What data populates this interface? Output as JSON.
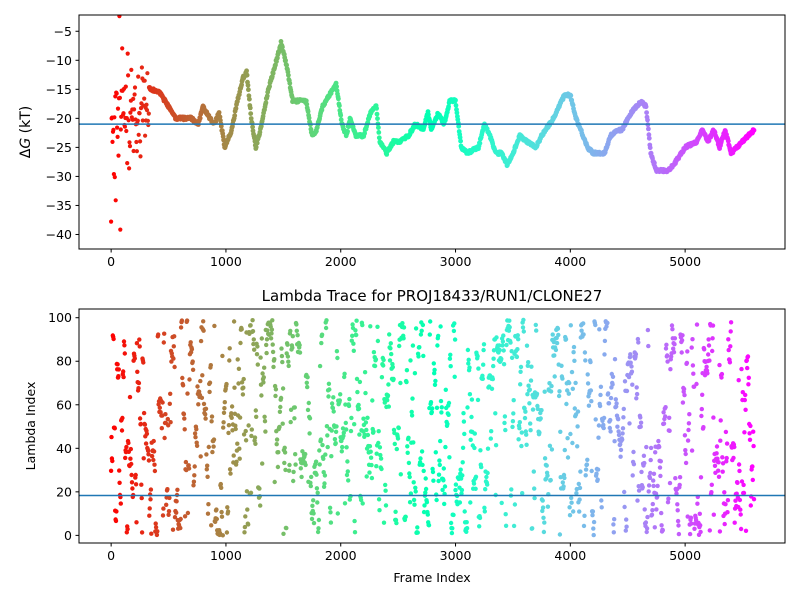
{
  "chart_data": [
    {
      "type": "scatter",
      "title": "",
      "xlabel": "",
      "ylabel_prefix": "Δ",
      "ylabel_var": "G",
      "ylabel_suffix": " (kT)",
      "xlim": [
        -280,
        5870
      ],
      "ylim": [
        -42.5,
        -2.2
      ],
      "xticks": [
        0,
        1000,
        2000,
        3000,
        4000,
        5000
      ],
      "xtick_labels": [
        "0",
        "1000",
        "2000",
        "3000",
        "4000",
        "5000"
      ],
      "yticks": [
        -5,
        -10,
        -15,
        -20,
        -25,
        -30,
        -35,
        -40
      ],
      "ytick_labels": [
        "−5",
        "−10",
        "−15",
        "−20",
        "−25",
        "−30",
        "−35",
        "−40"
      ],
      "hline": -21.0,
      "hline_color": "#1f77b4",
      "colormap": "rainbow",
      "x_max": 5600,
      "trace": [
        [
          0,
          -20
        ],
        [
          60,
          -20
        ],
        [
          120,
          -18
        ],
        [
          200,
          -16
        ],
        [
          280,
          -14
        ],
        [
          350,
          -15
        ],
        [
          420,
          -15.5
        ],
        [
          500,
          -18
        ],
        [
          560,
          -20
        ],
        [
          620,
          -20
        ],
        [
          700,
          -20
        ],
        [
          760,
          -21
        ],
        [
          800,
          -18
        ],
        [
          860,
          -20
        ],
        [
          900,
          -21
        ],
        [
          940,
          -19
        ],
        [
          990,
          -25
        ],
        [
          1050,
          -22
        ],
        [
          1100,
          -17
        ],
        [
          1150,
          -13
        ],
        [
          1180,
          -12
        ],
        [
          1220,
          -20
        ],
        [
          1260,
          -25
        ],
        [
          1300,
          -22
        ],
        [
          1370,
          -15
        ],
        [
          1440,
          -10
        ],
        [
          1480,
          -7
        ],
        [
          1530,
          -11
        ],
        [
          1580,
          -17
        ],
        [
          1700,
          -17
        ],
        [
          1750,
          -23
        ],
        [
          1790,
          -22
        ],
        [
          1840,
          -18
        ],
        [
          1900,
          -16
        ],
        [
          1960,
          -14
        ],
        [
          2010,
          -21
        ],
        [
          2050,
          -23
        ],
        [
          2080,
          -20
        ],
        [
          2130,
          -23
        ],
        [
          2200,
          -23
        ],
        [
          2260,
          -19
        ],
        [
          2310,
          -18
        ],
        [
          2340,
          -24
        ],
        [
          2400,
          -26
        ],
        [
          2460,
          -24
        ],
        [
          2520,
          -24
        ],
        [
          2590,
          -23
        ],
        [
          2650,
          -21
        ],
        [
          2720,
          -22
        ],
        [
          2760,
          -19
        ],
        [
          2790,
          -22
        ],
        [
          2850,
          -19
        ],
        [
          2900,
          -21
        ],
        [
          2950,
          -17
        ],
        [
          3000,
          -17
        ],
        [
          3050,
          -25
        ],
        [
          3100,
          -26
        ],
        [
          3200,
          -25
        ],
        [
          3250,
          -21
        ],
        [
          3300,
          -23
        ],
        [
          3350,
          -26
        ],
        [
          3400,
          -26
        ],
        [
          3450,
          -28
        ],
        [
          3500,
          -26
        ],
        [
          3560,
          -23
        ],
        [
          3620,
          -24
        ],
        [
          3700,
          -25
        ],
        [
          3750,
          -23
        ],
        [
          3850,
          -20
        ],
        [
          3950,
          -16
        ],
        [
          4000,
          -16
        ],
        [
          4050,
          -20
        ],
        [
          4150,
          -25
        ],
        [
          4200,
          -26
        ],
        [
          4300,
          -26
        ],
        [
          4350,
          -23
        ],
        [
          4400,
          -22
        ],
        [
          4450,
          -22
        ],
        [
          4500,
          -20
        ],
        [
          4550,
          -18.5
        ],
        [
          4620,
          -17
        ],
        [
          4660,
          -18
        ],
        [
          4700,
          -26
        ],
        [
          4750,
          -29
        ],
        [
          4850,
          -29
        ],
        [
          4900,
          -28
        ],
        [
          5000,
          -25
        ],
        [
          5100,
          -24
        ],
        [
          5150,
          -22
        ],
        [
          5200,
          -24
        ],
        [
          5250,
          -22
        ],
        [
          5300,
          -25
        ],
        [
          5350,
          -22
        ],
        [
          5400,
          -26
        ],
        [
          5450,
          -25
        ],
        [
          5500,
          -24
        ],
        [
          5600,
          -22
        ]
      ]
    },
    {
      "type": "scatter",
      "title": "Lambda Trace for PROJ18433/RUN1/CLONE27",
      "xlabel": "Frame Index",
      "ylabel": "Lambda Index",
      "xlim": [
        -280,
        5870
      ],
      "ylim": [
        -3.5,
        104
      ],
      "xticks": [
        0,
        1000,
        2000,
        3000,
        4000,
        5000
      ],
      "xtick_labels": [
        "0",
        "1000",
        "2000",
        "3000",
        "4000",
        "5000"
      ],
      "yticks": [
        0,
        20,
        40,
        60,
        80,
        100
      ],
      "ytick_labels": [
        "0",
        "20",
        "40",
        "60",
        "80",
        "100"
      ],
      "hline": 18.3,
      "hline_color": "#1f77b4",
      "colormap": "rainbow",
      "x_max": 5600,
      "lambda_range": [
        0,
        99
      ]
    }
  ]
}
